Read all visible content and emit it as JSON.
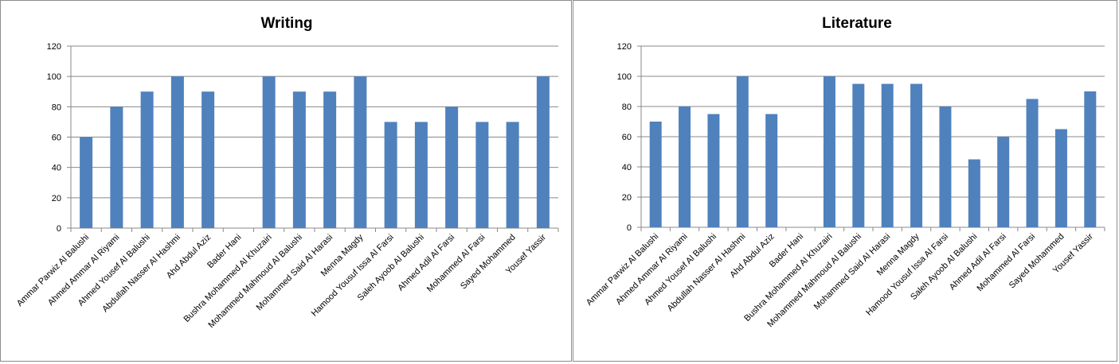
{
  "chart_data": [
    {
      "type": "bar",
      "title": "Writing",
      "xlabel": "",
      "ylabel": "",
      "ylim": [
        0,
        120
      ],
      "yticks": [
        0,
        20,
        40,
        60,
        80,
        100,
        120
      ],
      "grid": true,
      "categories": [
        "Ammar Parwiz Al Balushi",
        "Ahmed Ammar Al Riyami",
        "Ahmed Yousef Al Balushi",
        "Abdullah Nasser Al Hashmi",
        "Ahd Abdul Aziz",
        "Bader Hani",
        "Bushra Mohammed Al Khuzairi",
        "Mohammed Mahmoud Al Balushi",
        "Mohammed Said Al Harasi",
        "Menna Magdy",
        "Hamood Yousuf Issa Al Farsi",
        "Saleh Ayoob Al Balushi",
        "Ahmed Adil Al Farsi",
        "Mohammed Al Farsi",
        "Sayed Mohammed",
        "Yousef Yassir"
      ],
      "values": [
        60,
        80,
        90,
        100,
        90,
        0,
        100,
        90,
        90,
        100,
        70,
        70,
        80,
        70,
        70,
        100
      ],
      "bar_color": "#4f81bd"
    },
    {
      "type": "bar",
      "title": "Literature",
      "xlabel": "",
      "ylabel": "",
      "ylim": [
        0,
        120
      ],
      "yticks": [
        0,
        20,
        40,
        60,
        80,
        100,
        120
      ],
      "grid": true,
      "categories": [
        "Ammar Parwiz Al Balushi",
        "Ahmed Ammar Al Riyami",
        "Ahmed Yousef Al Balushi",
        "Abdullah Nasser Al Hashmi",
        "Ahd Abdul Aziz",
        "Bader Hani",
        "Bushra Mohammed Al Khuzairi",
        "Mohammed Mahmoud Al Balushi",
        "Mohammed Said Al Harasi",
        "Menna Magdy",
        "Hamood Yousuf Issa Al Farsi",
        "Saleh Ayoob Al Balushi",
        "Ahmed Adil Al Farsi",
        "Mohammed Al Farsi",
        "Sayed Mohammed",
        "Yousef Yassir"
      ],
      "values": [
        70,
        80,
        75,
        100,
        75,
        0,
        100,
        95,
        95,
        95,
        80,
        45,
        60,
        85,
        65,
        90
      ],
      "bar_color": "#4f81bd"
    }
  ]
}
